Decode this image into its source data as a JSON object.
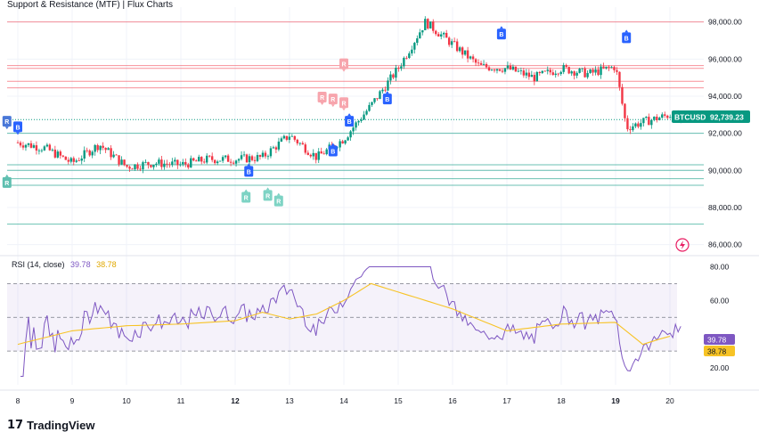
{
  "header": {
    "indicator_title": "Support & Resistance (MTF)",
    "separator": "|",
    "author": "Flux Charts"
  },
  "symbol": {
    "ticker": "BTCUSD",
    "last_price": "92,739.23",
    "badge_color": "#089981"
  },
  "price_axis": {
    "labels": [
      "98,000.00",
      "96,000.00",
      "94,000.00",
      "92,000.00",
      "90,000.00",
      "88,000.00",
      "86,000.00"
    ]
  },
  "rsi": {
    "label": "RSI (14, close)",
    "rsi_value": "39.78",
    "ma_value": "38.78",
    "rsi_color": "#7e57c2",
    "ma_color": "#f7c325",
    "axis_labels": [
      "80.00",
      "60.00",
      "20.00"
    ]
  },
  "time_axis": {
    "labels": [
      "8",
      "9",
      "10",
      "11",
      "12",
      "13",
      "14",
      "15",
      "16",
      "17",
      "18",
      "19",
      "20"
    ],
    "bold": [
      "12",
      "19"
    ]
  },
  "markers": {
    "break_letter": "B",
    "retest_letter": "R"
  },
  "branding": {
    "logo_mark": "17",
    "name": "TradingView"
  },
  "chart_data": {
    "type": "candlestick",
    "ylim": [
      85500,
      98800
    ],
    "rsi_ylim": [
      10,
      85
    ],
    "resistance_levels": [
      98000,
      95650,
      95500,
      94800,
      94450
    ],
    "support_levels": [
      92000,
      90300,
      90000,
      89550,
      89200,
      87100
    ],
    "waypoints": [
      [
        0,
        91.5
      ],
      [
        0.5,
        91.2
      ],
      [
        1,
        90.4
      ],
      [
        1.5,
        91.4
      ],
      [
        2,
        90.2
      ],
      [
        2.5,
        90.4
      ],
      [
        3,
        90.3
      ],
      [
        3.5,
        90.6
      ],
      [
        4,
        90.6
      ],
      [
        4.5,
        90.7
      ],
      [
        5,
        91.9
      ],
      [
        5.5,
        90.7
      ],
      [
        6,
        91.7
      ],
      [
        6.5,
        93.5
      ],
      [
        7,
        95.5
      ],
      [
        7.5,
        98.0
      ],
      [
        8,
        96.8
      ],
      [
        8.5,
        95.6
      ],
      [
        9,
        95.5
      ],
      [
        9.5,
        95.0
      ],
      [
        10,
        95.5
      ],
      [
        10.5,
        95.2
      ],
      [
        11,
        95.6
      ],
      [
        11.2,
        92.3
      ],
      [
        11.5,
        92.6
      ],
      [
        12,
        93.0
      ],
      [
        12.2,
        92.7
      ]
    ],
    "rsi_ma": [
      [
        0,
        34
      ],
      [
        1,
        42
      ],
      [
        2,
        45
      ],
      [
        3,
        46
      ],
      [
        4,
        48
      ],
      [
        4.5,
        53
      ],
      [
        5,
        49
      ],
      [
        5.5,
        52
      ],
      [
        6,
        60
      ],
      [
        6.5,
        70
      ],
      [
        7,
        65
      ],
      [
        8,
        55
      ],
      [
        9,
        42
      ],
      [
        10,
        46
      ],
      [
        11,
        47
      ],
      [
        11.5,
        34
      ],
      [
        11.8,
        37
      ],
      [
        12,
        38.8
      ]
    ]
  }
}
